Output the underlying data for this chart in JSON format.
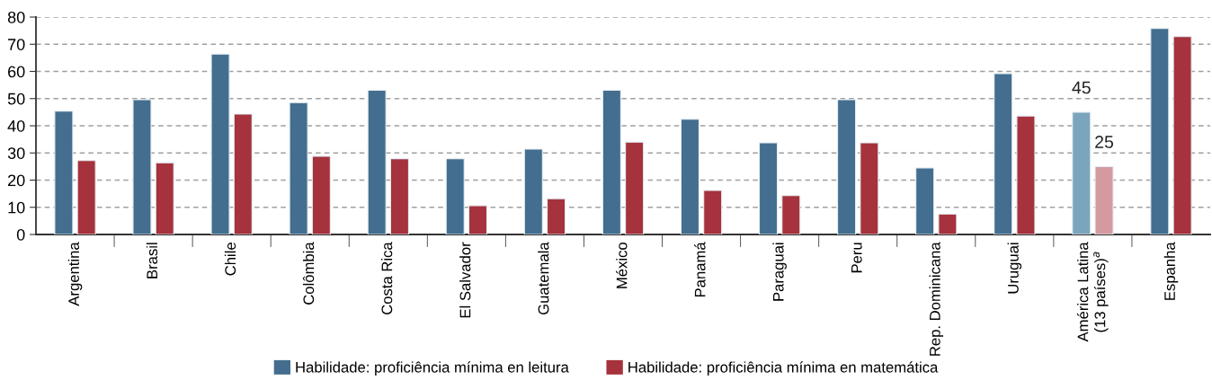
{
  "chart_data": {
    "type": "bar",
    "categories": [
      "Argentina",
      "Brasil",
      "Chile",
      "Colômbia",
      "Costa Rica",
      "El Salvador",
      "Guatemala",
      "México",
      "Panamá",
      "Paraguai",
      "Peru",
      "Rep. Dominicana",
      "Uruguai",
      "América Latina\n(13 países)$^{a}$",
      "Espanha"
    ],
    "series": [
      {
        "name": "Habilidade: proficiência mínima en leitura",
        "color": "#436e8f",
        "colors": [
          "#436e8f",
          "#436e8f",
          "#436e8f",
          "#436e8f",
          "#436e8f",
          "#436e8f",
          "#436e8f",
          "#436e8f",
          "#436e8f",
          "#436e8f",
          "#436e8f",
          "#436e8f",
          "#436e8f",
          "#7ba5bc",
          "#436e8f"
        ],
        "values": [
          45.4,
          49.6,
          66.4,
          48.5,
          53.1,
          27.9,
          31.4,
          53.1,
          42.4,
          33.7,
          49.6,
          24.5,
          59.2,
          45,
          75.8
        ],
        "value_labels": [
          null,
          null,
          null,
          null,
          null,
          null,
          null,
          null,
          null,
          null,
          null,
          null,
          null,
          "45",
          null
        ]
      },
      {
        "name": "Habilidade: proficiência mínima en matemática",
        "color": "#a5323c",
        "colors": [
          "#a5323c",
          "#a5323c",
          "#a5323c",
          "#a5323c",
          "#a5323c",
          "#a5323c",
          "#a5323c",
          "#a5323c",
          "#a5323c",
          "#a5323c",
          "#a5323c",
          "#a5323c",
          "#a5323c",
          "#d49aa0",
          "#a5323c"
        ],
        "values": [
          27.2,
          26.4,
          44.3,
          28.8,
          27.9,
          10.6,
          13.2,
          34.0,
          16.2,
          14.3,
          33.7,
          7.5,
          43.6,
          25,
          72.8
        ],
        "value_labels": [
          null,
          null,
          null,
          null,
          null,
          null,
          null,
          null,
          null,
          null,
          null,
          null,
          null,
          "25",
          null
        ]
      }
    ],
    "ylim": [
      0,
      80
    ],
    "yticks": [
      0,
      10,
      20,
      30,
      40,
      50,
      60,
      70,
      80
    ],
    "grid": "y",
    "legend": "bottom"
  }
}
